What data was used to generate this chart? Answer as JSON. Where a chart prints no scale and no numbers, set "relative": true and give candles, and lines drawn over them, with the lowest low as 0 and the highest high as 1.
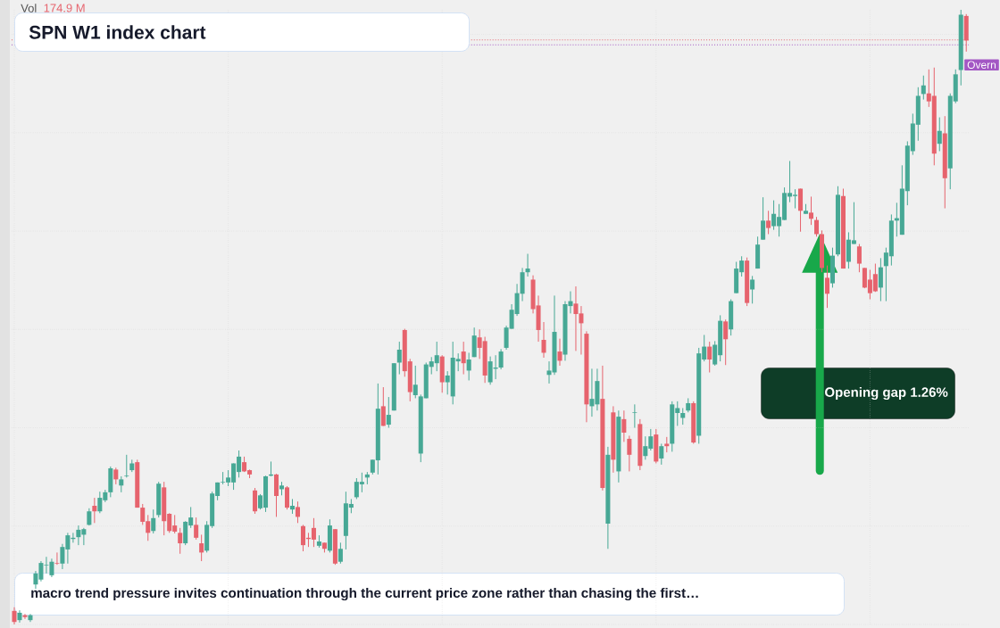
{
  "chart_data": {
    "type": "candlestick",
    "title": "SPN W1 index chart",
    "relative": true,
    "grid": true,
    "categories": [
      null,
      null,
      null,
      null,
      null,
      null,
      null,
      null,
      null,
      null,
      null,
      null,
      null,
      null,
      null,
      null,
      null,
      null,
      null,
      null,
      null,
      null,
      null,
      null,
      null,
      null,
      null,
      null,
      null,
      null,
      null,
      null,
      null,
      null,
      null,
      null,
      null,
      null,
      null,
      null,
      null,
      null,
      null,
      null,
      null,
      null,
      null,
      null,
      null,
      null,
      null,
      null,
      null,
      null,
      null,
      null,
      null,
      null,
      null,
      null,
      null,
      null,
      null,
      null,
      null,
      null,
      null,
      null,
      null,
      null,
      null,
      null,
      null,
      null,
      null,
      null,
      null,
      null,
      null,
      null,
      null,
      null,
      null,
      null,
      null,
      null,
      null,
      null,
      null,
      null,
      null,
      null,
      null,
      null,
      null,
      null,
      null,
      null,
      null,
      null,
      null,
      null,
      null,
      null,
      null,
      null,
      null,
      null,
      null,
      null,
      null,
      null,
      null,
      null,
      null,
      null,
      null,
      null,
      null,
      null,
      null,
      null,
      null,
      null,
      null,
      null,
      null,
      null,
      null,
      null,
      null,
      null,
      null,
      null,
      null,
      null,
      null,
      null,
      null,
      null,
      null,
      null,
      null,
      null,
      null,
      null,
      null,
      null,
      null,
      null,
      null,
      null,
      null,
      null,
      null,
      null,
      null,
      null,
      null,
      null,
      null,
      null,
      null,
      null,
      null,
      null,
      null,
      null,
      null,
      null,
      null,
      null,
      null,
      null,
      null,
      null,
      null,
      null,
      null
    ],
    "ohlc": [
      [
        0.022,
        0.028,
        0,
        0.004
      ],
      [
        0.007,
        0.023,
        0.003,
        0.019
      ],
      [
        0.015,
        0.017,
        0.009,
        0.012
      ],
      [
        0.007,
        0.017,
        0.004,
        0.015
      ],
      [
        0.065,
        0.087,
        0.058,
        0.083
      ],
      [
        0.073,
        0.103,
        0.07,
        0.1
      ],
      [
        0.096,
        0.11,
        0.083,
        0.097
      ],
      [
        0.08,
        0.107,
        0.077,
        0.102
      ],
      [
        0.1,
        0.117,
        0.097,
        0.099
      ],
      [
        0.099,
        0.131,
        0.09,
        0.126
      ],
      [
        0.122,
        0.149,
        0.099,
        0.145
      ],
      [
        0.139,
        0.149,
        0.133,
        0.141
      ],
      [
        0.142,
        0.161,
        0.129,
        0.154
      ],
      [
        0.146,
        0.157,
        0.129,
        0.155
      ],
      [
        0.162,
        0.189,
        0.161,
        0.184
      ],
      [
        0.193,
        0.206,
        0.165,
        0.184
      ],
      [
        0.184,
        0.216,
        0.181,
        0.206
      ],
      [
        0.202,
        0.219,
        0.199,
        0.215
      ],
      [
        0.215,
        0.257,
        0.207,
        0.254
      ],
      [
        0.252,
        0.255,
        0.228,
        0.236
      ],
      [
        0.226,
        0.241,
        0.215,
        0.236
      ],
      [
        0.241,
        0.276,
        0.239,
        0.242
      ],
      [
        0.251,
        0.268,
        0.248,
        0.262
      ],
      [
        0.264,
        0.268,
        0.19,
        0.19
      ],
      [
        0.19,
        0.196,
        0.162,
        0.167
      ],
      [
        0.168,
        0.178,
        0.136,
        0.149
      ],
      [
        0.152,
        0.187,
        0.148,
        0.173
      ],
      [
        0.178,
        0.232,
        0.174,
        0.229
      ],
      [
        0.223,
        0.232,
        0.145,
        0.168
      ],
      [
        0.18,
        0.181,
        0.149,
        0.152
      ],
      [
        0.161,
        0.178,
        0.148,
        0.151
      ],
      [
        0.149,
        0.157,
        0.115,
        0.132
      ],
      [
        0.132,
        0.168,
        0.129,
        0.167
      ],
      [
        0.161,
        0.191,
        0.157,
        0.174
      ],
      [
        0.162,
        0.174,
        0.138,
        0.141
      ],
      [
        0.132,
        0.146,
        0.103,
        0.117
      ],
      [
        0.12,
        0.168,
        0.117,
        0.162
      ],
      [
        0.16,
        0.216,
        0.157,
        0.213
      ],
      [
        0.209,
        0.231,
        0.202,
        0.231
      ],
      [
        0.231,
        0.248,
        0.228,
        0.232
      ],
      [
        0.231,
        0.251,
        0.225,
        0.239
      ],
      [
        0.231,
        0.262,
        0.219,
        0.262
      ],
      [
        0.248,
        0.283,
        0.239,
        0.273
      ],
      [
        0.264,
        0.273,
        0.248,
        0.249
      ],
      [
        0.251,
        0.252,
        0.238,
        0.244
      ],
      [
        0.218,
        0.222,
        0.18,
        0.184
      ],
      [
        0.189,
        0.212,
        0.187,
        0.21
      ],
      [
        0.19,
        0.242,
        0.183,
        0.241
      ],
      [
        0.242,
        0.265,
        0.241,
        0.244
      ],
      [
        0.244,
        0.245,
        0.175,
        0.209
      ],
      [
        0.22,
        0.232,
        0.21,
        0.226
      ],
      [
        0.223,
        0.225,
        0.187,
        0.19
      ],
      [
        0.187,
        0.204,
        0.18,
        0.193
      ],
      [
        0.191,
        0.2,
        0.165,
        0.175
      ],
      [
        0.16,
        0.162,
        0.119,
        0.129
      ],
      [
        0.141,
        0.149,
        0.126,
        0.139
      ],
      [
        0.157,
        0.173,
        0.126,
        0.138
      ],
      [
        0.128,
        0.145,
        0.125,
        0.135
      ],
      [
        0.133,
        0.133,
        0.117,
        0.123
      ],
      [
        0.12,
        0.171,
        0.117,
        0.161
      ],
      [
        0.155,
        0.155,
        0.097,
        0.099
      ],
      [
        0.102,
        0.133,
        0.099,
        0.123
      ],
      [
        0.144,
        0.216,
        0.122,
        0.197
      ],
      [
        0.19,
        0.204,
        0.181,
        0.196
      ],
      [
        0.207,
        0.238,
        0.204,
        0.232
      ],
      [
        0.228,
        0.247,
        0.215,
        0.232
      ],
      [
        0.239,
        0.248,
        0.228,
        0.244
      ],
      [
        0.247,
        0.268,
        0.244,
        0.268
      ],
      [
        0.267,
        0.392,
        0.244,
        0.351
      ],
      [
        0.355,
        0.386,
        0.323,
        0.323
      ],
      [
        0.325,
        0.37,
        0.32,
        0.341
      ],
      [
        0.348,
        0.425,
        0.348,
        0.425
      ],
      [
        0.426,
        0.46,
        0.407,
        0.447
      ],
      [
        0.479,
        0.481,
        0.403,
        0.412
      ],
      [
        0.428,
        0.432,
        0.363,
        0.378
      ],
      [
        0.373,
        0.421,
        0.368,
        0.39
      ],
      [
        0.278,
        0.374,
        0.264,
        0.371
      ],
      [
        0.368,
        0.426,
        0.368,
        0.423
      ],
      [
        0.419,
        0.435,
        0.407,
        0.428
      ],
      [
        0.425,
        0.46,
        0.412,
        0.438
      ],
      [
        0.436,
        0.438,
        0.377,
        0.394
      ],
      [
        0.394,
        0.412,
        0.374,
        0.405
      ],
      [
        0.371,
        0.46,
        0.358,
        0.434
      ],
      [
        0.428,
        0.441,
        0.412,
        0.432
      ],
      [
        0.444,
        0.46,
        0.407,
        0.425
      ],
      [
        0.413,
        0.442,
        0.397,
        0.431
      ],
      [
        0.435,
        0.483,
        0.435,
        0.47
      ],
      [
        0.467,
        0.48,
        0.432,
        0.45
      ],
      [
        0.461,
        0.468,
        0.393,
        0.405
      ],
      [
        0.394,
        0.436,
        0.39,
        0.428
      ],
      [
        0.416,
        0.438,
        0.399,
        0.418
      ],
      [
        0.418,
        0.448,
        0.415,
        0.444
      ],
      [
        0.45,
        0.486,
        0.447,
        0.483
      ],
      [
        0.481,
        0.521,
        0.481,
        0.512
      ],
      [
        0.505,
        0.554,
        0.502,
        0.539
      ],
      [
        0.538,
        0.58,
        0.526,
        0.573
      ],
      [
        0.573,
        0.603,
        0.566,
        0.579
      ],
      [
        0.561,
        0.568,
        0.506,
        0.513
      ],
      [
        0.519,
        0.535,
        0.46,
        0.479
      ],
      [
        0.463,
        0.492,
        0.434,
        0.442
      ],
      [
        0.406,
        0.428,
        0.392,
        0.413
      ],
      [
        0.41,
        0.535,
        0.406,
        0.476
      ],
      [
        0.444,
        0.465,
        0.421,
        0.429
      ],
      [
        0.439,
        0.526,
        0.429,
        0.521
      ],
      [
        0.518,
        0.542,
        0.506,
        0.526
      ],
      [
        0.522,
        0.55,
        0.445,
        0.505
      ],
      [
        0.506,
        0.518,
        0.439,
        0.49
      ],
      [
        0.473,
        0.477,
        0.329,
        0.358
      ],
      [
        0.355,
        0.416,
        0.338,
        0.367
      ],
      [
        0.358,
        0.416,
        0.348,
        0.396
      ],
      [
        0.367,
        0.421,
        0.218,
        0.222
      ],
      [
        0.164,
        0.289,
        0.123,
        0.276
      ],
      [
        0.345,
        0.355,
        0.247,
        0.268
      ],
      [
        0.249,
        0.348,
        0.231,
        0.338
      ],
      [
        0.334,
        0.348,
        0.297,
        0.312
      ],
      [
        0.302,
        0.307,
        0.249,
        0.276
      ],
      [
        0.344,
        0.358,
        0.32,
        0.345
      ],
      [
        0.326,
        0.334,
        0.251,
        0.258
      ],
      [
        0.274,
        0.306,
        0.268,
        0.29
      ],
      [
        0.286,
        0.318,
        0.283,
        0.306
      ],
      [
        0.309,
        0.318,
        0.262,
        0.265
      ],
      [
        0.27,
        0.294,
        0.26,
        0.29
      ],
      [
        0.294,
        0.305,
        0.28,
        0.29
      ],
      [
        0.294,
        0.363,
        0.281,
        0.358
      ],
      [
        0.344,
        0.363,
        0.323,
        0.352
      ],
      [
        0.336,
        0.352,
        0.325,
        0.344
      ],
      [
        0.348,
        0.368,
        0.345,
        0.36
      ],
      [
        0.36,
        0.363,
        0.294,
        0.296
      ],
      [
        0.307,
        0.45,
        0.294,
        0.441
      ],
      [
        0.431,
        0.471,
        0.428,
        0.452
      ],
      [
        0.452,
        0.46,
        0.41,
        0.431
      ],
      [
        0.423,
        0.461,
        0.421,
        0.455
      ],
      [
        0.438,
        0.503,
        0.428,
        0.494
      ],
      [
        0.493,
        0.496,
        0.422,
        0.464
      ],
      [
        0.48,
        0.529,
        0.47,
        0.526
      ],
      [
        0.539,
        0.59,
        0.539,
        0.579
      ],
      [
        0.573,
        0.599,
        0.566,
        0.592
      ],
      [
        0.592,
        0.597,
        0.518,
        0.523
      ],
      [
        0.545,
        0.567,
        0.522,
        0.561
      ],
      [
        0.579,
        0.631,
        0.579,
        0.618
      ],
      [
        0.626,
        0.695,
        0.626,
        0.657
      ],
      [
        0.657,
        0.673,
        0.635,
        0.645
      ],
      [
        0.648,
        0.69,
        0.642,
        0.668
      ],
      [
        0.648,
        0.684,
        0.631,
        0.663
      ],
      [
        0.658,
        0.711,
        0.658,
        0.702
      ],
      [
        0.696,
        0.754,
        0.687,
        0.702
      ],
      [
        0.697,
        0.708,
        0.677,
        0.699
      ],
      [
        0.709,
        0.709,
        0.639,
        0.673
      ],
      [
        0.668,
        0.684,
        0.668,
        0.673
      ],
      [
        0.67,
        0.696,
        0.65,
        0.66
      ],
      [
        0.658,
        0.663,
        0.631,
        0.635
      ],
      [
        0.635,
        0.641,
        0.573,
        0.58
      ],
      [
        0.564,
        0.584,
        0.515,
        0.538
      ],
      [
        0.555,
        0.613,
        0.548,
        0.6
      ],
      [
        0.602,
        0.713,
        0.599,
        0.699
      ],
      [
        0.697,
        0.709,
        0.579,
        0.579
      ],
      [
        0.59,
        0.638,
        0.579,
        0.626
      ],
      [
        0.619,
        0.687,
        0.619,
        0.625
      ],
      [
        0.615,
        0.619,
        0.573,
        0.587
      ],
      [
        0.58,
        0.58,
        0.547,
        0.548
      ],
      [
        0.561,
        0.577,
        0.529,
        0.539
      ],
      [
        0.57,
        0.587,
        0.541,
        0.542
      ],
      [
        0.548,
        0.596,
        0.526,
        0.581
      ],
      [
        0.583,
        0.613,
        0.526,
        0.605
      ],
      [
        0.599,
        0.667,
        0.584,
        0.657
      ],
      [
        0.657,
        0.686,
        0.631,
        0.661
      ],
      [
        0.634,
        0.747,
        0.634,
        0.709
      ],
      [
        0.705,
        0.786,
        0.682,
        0.779
      ],
      [
        0.77,
        0.831,
        0.764,
        0.815
      ],
      [
        0.813,
        0.874,
        0.787,
        0.86
      ],
      [
        0.863,
        0.893,
        0.854,
        0.877
      ],
      [
        0.864,
        0.903,
        0.842,
        0.851
      ],
      [
        0.86,
        0.906,
        0.747,
        0.766
      ],
      [
        0.782,
        0.825,
        0.77,
        0.803
      ],
      [
        0.799,
        0.827,
        0.677,
        0.726
      ],
      [
        0.742,
        0.864,
        0.708,
        0.86
      ],
      [
        0.851,
        0.903,
        0.848,
        0.895
      ],
      [
        0.902,
        1,
        0.877,
        0.992
      ],
      [
        0.99,
        0.993,
        0.932,
        0.95
      ]
    ],
    "colors": [
      "#e6636d",
      "#47a895",
      "#e6636d",
      "#47a895",
      "#47a895",
      "#47a895",
      "#47a895",
      "#47a895",
      "#e6636d",
      "#47a895",
      "#47a895",
      "#47a895",
      "#47a895",
      "#47a895",
      "#47a895",
      "#e6636d",
      "#47a895",
      "#47a895",
      "#47a895",
      "#e6636d",
      "#47a895",
      "#47a895",
      "#47a895",
      "#e6636d",
      "#e6636d",
      "#e6636d",
      "#47a895",
      "#47a895",
      "#e6636d",
      "#e6636d",
      "#e6636d",
      "#e6636d",
      "#47a895",
      "#47a895",
      "#e6636d",
      "#e6636d",
      "#47a895",
      "#47a895",
      "#47a895",
      "#47a895",
      "#47a895",
      "#47a895",
      "#47a895",
      "#e6636d",
      "#e6636d",
      "#e6636d",
      "#47a895",
      "#47a895",
      "#47a895",
      "#e6636d",
      "#47a895",
      "#e6636d",
      "#47a895",
      "#e6636d",
      "#e6636d",
      "#e6636d",
      "#e6636d",
      "#47a895",
      "#e6636d",
      "#47a895",
      "#e6636d",
      "#47a895",
      "#47a895",
      "#47a895",
      "#47a895",
      "#47a895",
      "#47a895",
      "#47a895",
      "#47a895",
      "#e6636d",
      "#47a895",
      "#47a895",
      "#47a895",
      "#e6636d",
      "#e6636d",
      "#47a895",
      "#47a895",
      "#47a895",
      "#47a895",
      "#47a895",
      "#e6636d",
      "#47a895",
      "#47a895",
      "#47a895",
      "#e6636d",
      "#47a895",
      "#47a895",
      "#e6636d",
      "#e6636d",
      "#47a895",
      "#47a895",
      "#47a895",
      "#47a895",
      "#47a895",
      "#47a895",
      "#47a895",
      "#47a895",
      "#e6636d",
      "#e6636d",
      "#e6636d",
      "#47a895",
      "#47a895",
      "#e6636d",
      "#47a895",
      "#47a895",
      "#e6636d",
      "#e6636d",
      "#e6636d",
      "#47a895",
      "#47a895",
      "#e6636d",
      "#47a895",
      "#e6636d",
      "#47a895",
      "#e6636d",
      "#e6636d",
      "#47a895",
      "#e6636d",
      "#47a895",
      "#47a895",
      "#e6636d",
      "#47a895",
      "#e6636d",
      "#47a895",
      "#47a895",
      "#47a895",
      "#47a895",
      "#e6636d",
      "#47a895",
      "#47a895",
      "#e6636d",
      "#47a895",
      "#47a895",
      "#e6636d",
      "#47a895",
      "#47a895",
      "#47a895",
      "#e6636d",
      "#47a895",
      "#47a895",
      "#47a895",
      "#e6636d",
      "#47a895",
      "#47a895",
      "#47a895",
      "#47a895",
      "#47a895",
      "#e6636d",
      "#47a895",
      "#e6636d",
      "#e6636d",
      "#e6636d",
      "#e6636d",
      "#47a895",
      "#47a895",
      "#e6636d",
      "#47a895",
      "#47a895",
      "#e6636d",
      "#e6636d",
      "#e6636d",
      "#e6636d",
      "#47a895",
      "#47a895",
      "#47a895",
      "#47a895",
      "#47a895",
      "#47a895",
      "#47a895",
      "#47a895",
      "#47a895",
      "#e6636d",
      "#e6636d",
      "#47a895",
      "#e6636d",
      "#47a895",
      "#47a895",
      "#47a895",
      "#e6636d"
    ],
    "ref_lines": [
      {
        "axis": "y",
        "value": 0.951,
        "color": "#e6636d",
        "line_style": "dotted"
      },
      {
        "axis": "y",
        "value": 0.943,
        "label": "Overn",
        "color": "#a357c4",
        "line_style": "dotted"
      }
    ],
    "annotations": [
      "Vol",
      "174.9 M",
      "Opening gap 1.26%",
      "macro trend pressure invites continuation through the current price zone rather than chasing the first…"
    ]
  }
}
